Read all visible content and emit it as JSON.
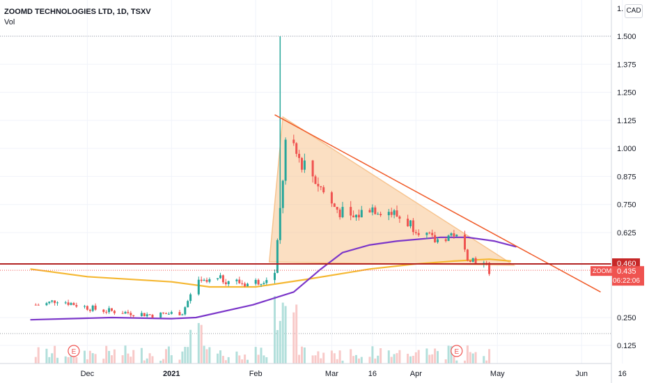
{
  "header": {
    "symbol_line": "ZOOMD TECHNOLOGIES LTD, 1D, TSXV",
    "volume_label": "Vol",
    "currency_button": "CAD",
    "top_tick_partial": "1."
  },
  "price_axis": {
    "ticks": [
      "1.500",
      "1.375",
      "1.250",
      "1.125",
      "1.000",
      "0.875",
      "0.750",
      "0.625",
      "0.250",
      "0.125"
    ],
    "tick_values": [
      1.5,
      1.375,
      1.25,
      1.125,
      1.0,
      0.875,
      0.75,
      0.625,
      0.25,
      0.125
    ],
    "resistance_label": "0.460",
    "price_label_ticker": "ZOOMD",
    "price_label_value": "0.435",
    "price_label_countdown": "06:22:06"
  },
  "time_axis": {
    "labels": [
      "Dec",
      "2021",
      "Feb",
      "Mar",
      "16",
      "Apr",
      "May",
      "Jun",
      "16"
    ],
    "dates": [
      "2020-12-01",
      "2021-01-01",
      "2021-02-01",
      "2021-03-01",
      "2021-03-16",
      "2021-04-01",
      "2021-05-01",
      "2021-06-01",
      "2021-06-16"
    ]
  },
  "earnings_markers": {
    "label": "E",
    "dates": [
      "2020-11-26",
      "2021-04-16"
    ]
  },
  "colors": {
    "up": "#26a69a",
    "down": "#ef5350",
    "ma_short": "#7b36c9",
    "ma_long": "#f5b731",
    "triangle_fill": "#f7c490",
    "triangle_stroke": "#f05a28",
    "resistance": "#b22222",
    "price_label_bg": "#ef5350",
    "resistance_label_bg": "#c62828"
  },
  "chart_data": {
    "type": "candlestick",
    "title": "ZOOMD TECHNOLOGIES LTD, 1D, TSXV",
    "currency": "CAD",
    "last_price": 0.435,
    "resistance_level": 0.46,
    "spike_high": {
      "date": "2021-02-10",
      "price": 1.5
    },
    "price_path": [
      {
        "date": "2020-11-15",
        "price": 0.3
      },
      {
        "date": "2020-11-20",
        "price": 0.32
      },
      {
        "date": "2020-11-27",
        "price": 0.3
      },
      {
        "date": "2020-12-05",
        "price": 0.28
      },
      {
        "date": "2020-12-15",
        "price": 0.27
      },
      {
        "date": "2020-12-25",
        "price": 0.26
      },
      {
        "date": "2021-01-05",
        "price": 0.27
      },
      {
        "date": "2021-01-10",
        "price": 0.38
      },
      {
        "date": "2021-01-20",
        "price": 0.4
      },
      {
        "date": "2021-01-30",
        "price": 0.38
      },
      {
        "date": "2021-02-08",
        "price": 0.42
      },
      {
        "date": "2021-02-10",
        "price": 0.72
      },
      {
        "date": "2021-02-12",
        "price": 1.02
      },
      {
        "date": "2021-02-16",
        "price": 0.97
      },
      {
        "date": "2021-02-22",
        "price": 0.88
      },
      {
        "date": "2021-03-01",
        "price": 0.75
      },
      {
        "date": "2021-03-08",
        "price": 0.68
      },
      {
        "date": "2021-03-15",
        "price": 0.74
      },
      {
        "date": "2021-03-22",
        "price": 0.72
      },
      {
        "date": "2021-04-01",
        "price": 0.65
      },
      {
        "date": "2021-04-08",
        "price": 0.58
      },
      {
        "date": "2021-04-15",
        "price": 0.62
      },
      {
        "date": "2021-04-20",
        "price": 0.5
      },
      {
        "date": "2021-04-27",
        "price": 0.45
      },
      {
        "date": "2021-04-28",
        "price": 0.435
      }
    ],
    "triangle": [
      {
        "date": "2021-02-06",
        "price": 0.47
      },
      {
        "date": "2021-02-11",
        "price": 1.14
      },
      {
        "date": "2021-05-07",
        "price": 0.455
      }
    ],
    "trendline": [
      {
        "date": "2021-02-08",
        "price": 1.15
      },
      {
        "date": "2021-06-08",
        "price": 0.35
      }
    ],
    "ma_short": [
      {
        "date": "2020-11-10",
        "price": 0.24
      },
      {
        "date": "2020-12-10",
        "price": 0.25
      },
      {
        "date": "2021-01-01",
        "price": 0.245
      },
      {
        "date": "2021-01-10",
        "price": 0.25
      },
      {
        "date": "2021-01-31",
        "price": 0.3
      },
      {
        "date": "2021-02-15",
        "price": 0.35
      },
      {
        "date": "2021-02-25",
        "price": 0.44
      },
      {
        "date": "2021-03-05",
        "price": 0.52
      },
      {
        "date": "2021-03-15",
        "price": 0.56
      },
      {
        "date": "2021-03-25",
        "price": 0.58
      },
      {
        "date": "2021-04-10",
        "price": 0.6
      },
      {
        "date": "2021-04-20",
        "price": 0.6
      },
      {
        "date": "2021-04-30",
        "price": 0.58
      },
      {
        "date": "2021-05-08",
        "price": 0.55
      }
    ],
    "ma_long": [
      {
        "date": "2020-11-10",
        "price": 0.44
      },
      {
        "date": "2020-12-01",
        "price": 0.41
      },
      {
        "date": "2021-01-01",
        "price": 0.39
      },
      {
        "date": "2021-01-15",
        "price": 0.37
      },
      {
        "date": "2021-02-01",
        "price": 0.37
      },
      {
        "date": "2021-02-20",
        "price": 0.4
      },
      {
        "date": "2021-03-15",
        "price": 0.44
      },
      {
        "date": "2021-04-01",
        "price": 0.46
      },
      {
        "date": "2021-04-15",
        "price": 0.475
      },
      {
        "date": "2021-04-28",
        "price": 0.485
      },
      {
        "date": "2021-05-06",
        "price": 0.475
      }
    ]
  }
}
